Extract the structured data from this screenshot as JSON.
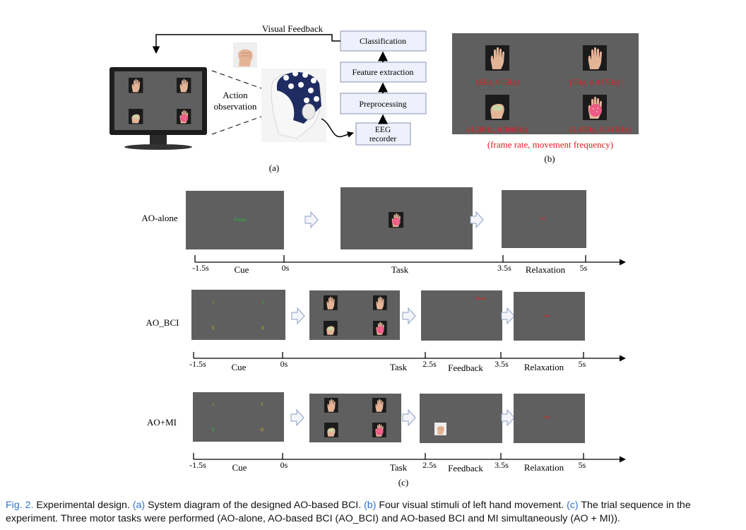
{
  "panel_a": {
    "visual_feedback": "Visual Feedback",
    "action_observation_1": "Action",
    "action_observation_2": "observation",
    "boxes": {
      "classification": "Classification",
      "feature_extraction": "Feature extraction",
      "preprocessing": "Preprocessing",
      "eeg_1": "EEG",
      "eeg_2": "recorder"
    },
    "label": "(a)"
  },
  "panel_b": {
    "stimuli": [
      "(6Hz, 0.5Hz)",
      "(5Hz, 0.417Hz)",
      "(4.28Hz, 0.306Hz)",
      "(5.45Hz, 0.341Hz)"
    ],
    "note": "(frame rate, movement frequency)",
    "label": "(b)"
  },
  "panel_c": {
    "label": "(c)",
    "rows": [
      {
        "name": "AO-alone",
        "screen1_text": "Focus",
        "screen3_text": "rest",
        "ticks": [
          "-1.5s",
          "0s",
          "3.5s",
          "5s"
        ],
        "phases": [
          "Cue",
          "Task",
          "Relaxation"
        ]
      },
      {
        "name": "AO_BCI",
        "cue_letters": [
          "I",
          "T",
          "E",
          "G"
        ],
        "screen3_text": "Wrong",
        "screen4_text": "rest",
        "ticks": [
          "-1.5s",
          "0s",
          "2.5s",
          "3.5s",
          "5s"
        ],
        "phases": [
          "Cue",
          "Task",
          "Feedback",
          "Relaxation"
        ]
      },
      {
        "name": "AO+MI",
        "cue_letters": [
          "I",
          "T",
          "E",
          "G"
        ],
        "screen4_text": "rest",
        "ticks": [
          "-1.5s",
          "0s",
          "2.5s",
          "3.5s",
          "5s"
        ],
        "phases": [
          "Cue",
          "Task",
          "Feedback",
          "Relaxation"
        ]
      }
    ]
  },
  "caption": {
    "fig": "Fig. 2.",
    "p1": " Experimental design. ",
    "a": "(a)",
    "p2": " System diagram of the designed AO-based BCI. ",
    "b": "(b)",
    "p3": " Four visual stimuli of left hand movement. ",
    "c": "(c)",
    "p4": " The trial sequence in the experiment. Three motor tasks were performed (AO-alone, AO-based BCI (AO_BCI) and AO-based BCI and MI simultaneously (AO + MI))."
  },
  "colors": {
    "screen": "#5f5f5f",
    "box_fill": "#eef0fb",
    "box_stroke": "#8d93b0",
    "red_text": "#e01b1b",
    "green_text": "#22c33a",
    "yellow_text": "#c9b51d",
    "caption_blue": "#2e74c9"
  }
}
